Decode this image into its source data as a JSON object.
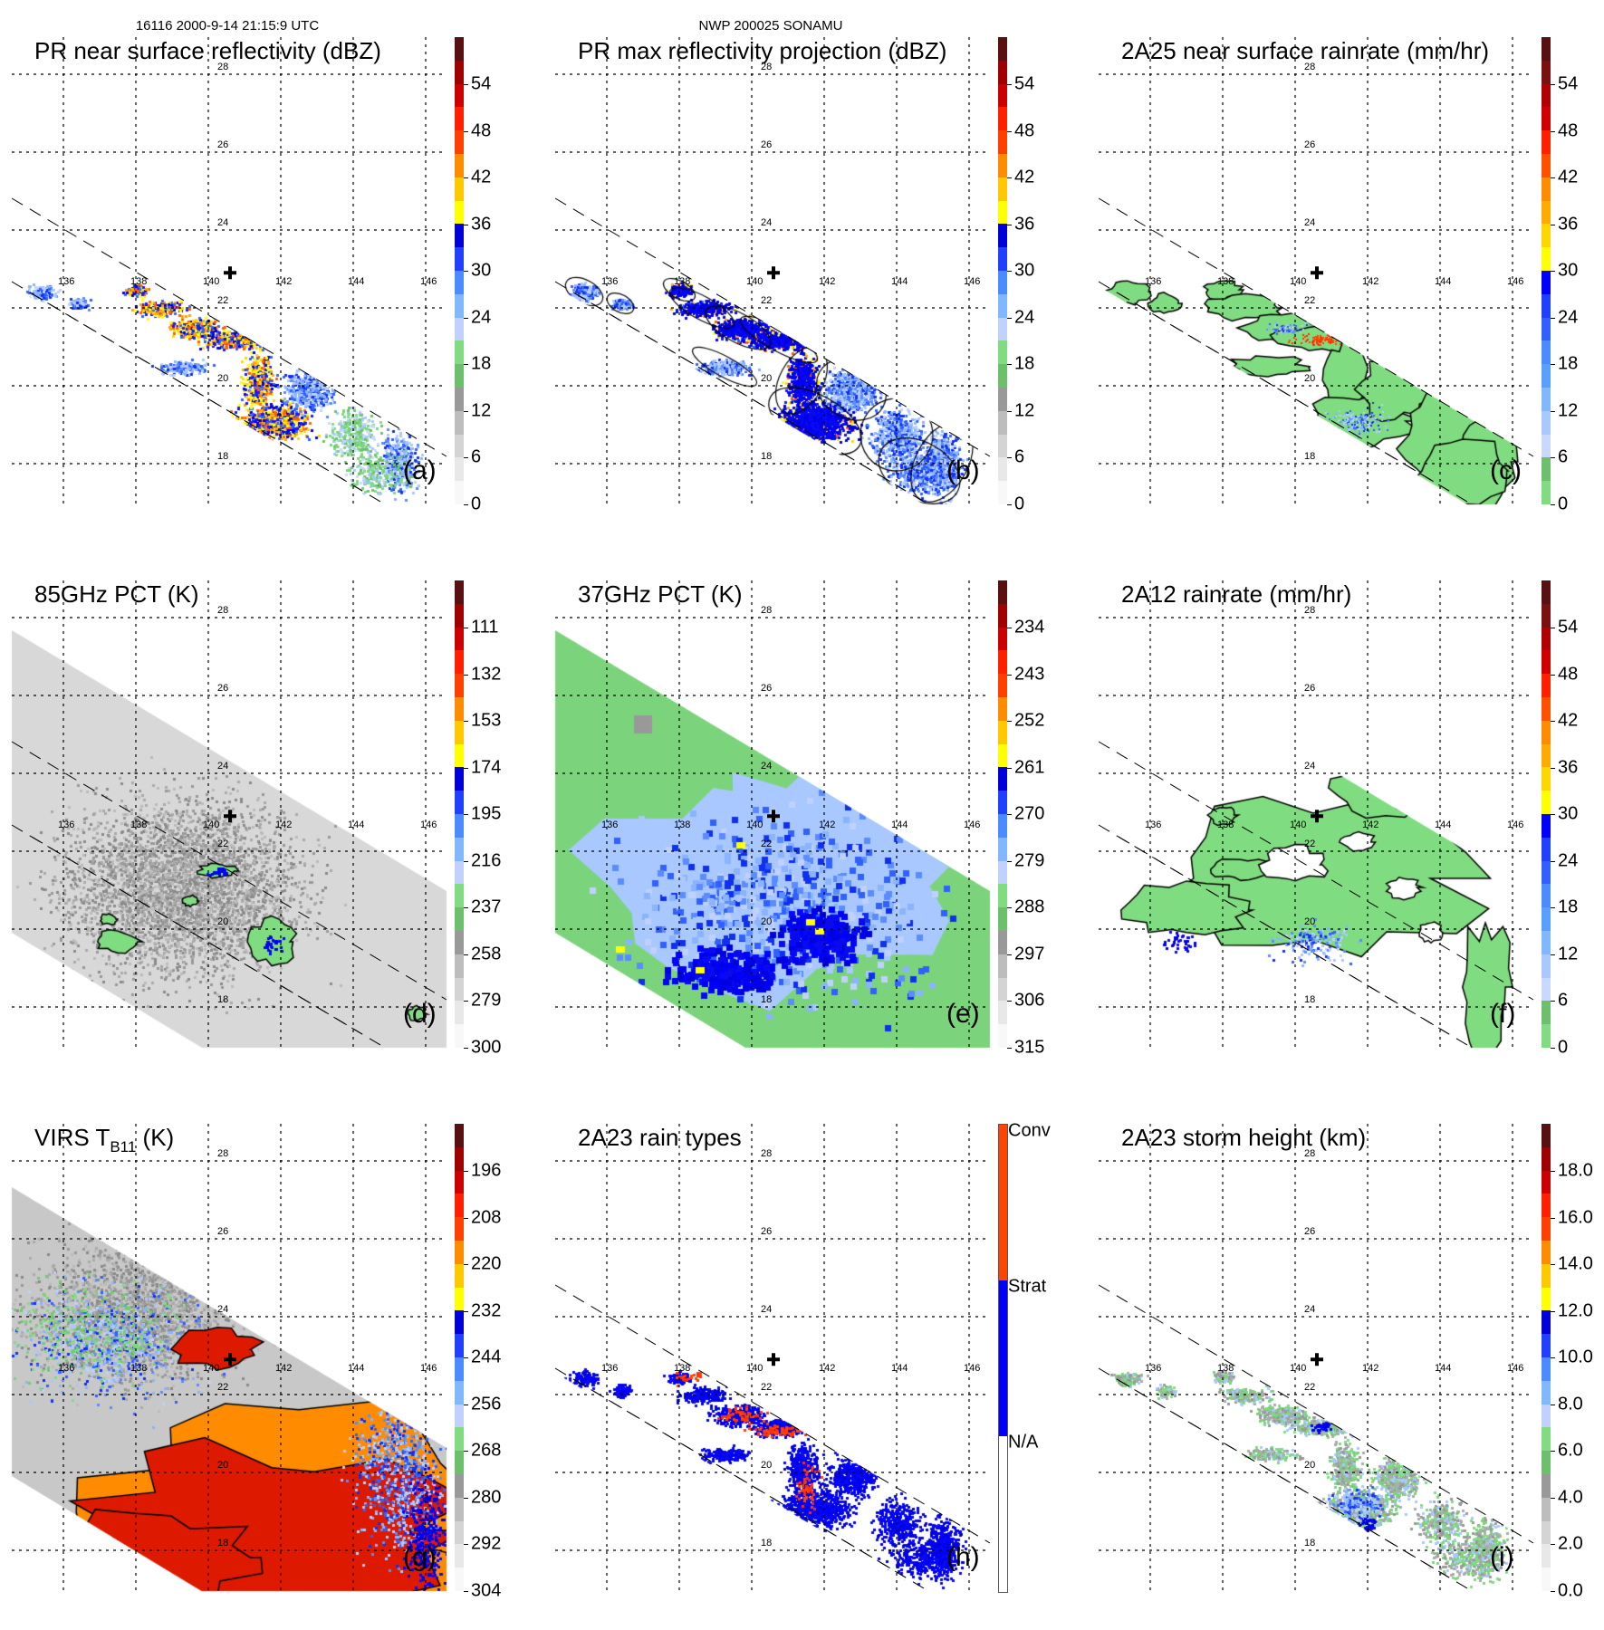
{
  "header": {
    "left": "16116 2000-9-14 21:15:9 UTC",
    "center": "NWP 200025 SONAMU"
  },
  "axes": {
    "lon_labels": [
      "136",
      "138",
      "140",
      "142",
      "144",
      "146"
    ],
    "lat_labels": [
      "28",
      "26",
      "24",
      "22",
      "20",
      "18"
    ]
  },
  "palettes": {
    "reflectivity": [
      "#f8f8f8",
      "#e8e8e8",
      "#d4d4d4",
      "#bdbdbd",
      "#999999",
      "#6cc06c",
      "#80dc80",
      "#c0d0ff",
      "#80b8ff",
      "#4a8cff",
      "#2040ff",
      "#0000d8",
      "#ffff00",
      "#ffc800",
      "#ff8c00",
      "#ff4000",
      "#ff2000",
      "#cc0000",
      "#a00000",
      "#5a1010"
    ],
    "rainrate": [
      "#80dc80",
      "#6cc06c",
      "#c8d8ff",
      "#a8c8ff",
      "#80b8ff",
      "#58a0ff",
      "#4a8cff",
      "#3060ff",
      "#2040ff",
      "#0000ff",
      "#ffff00",
      "#ffd700",
      "#ffaa00",
      "#ff8c00",
      "#ff5000",
      "#ff2000",
      "#d00000",
      "#b00000",
      "#7a1010",
      "#5a1010"
    ],
    "raintype": {
      "conv": "#ff4500",
      "strat": "#0000ff",
      "na": "#ffffff"
    }
  },
  "panels": [
    {
      "id": "a",
      "title": "PR near surface reflectivity (dBZ)",
      "label": "(a)",
      "palette": "reflectivity",
      "colorbar_labels": [
        "54",
        "48",
        "42",
        "36",
        "30",
        "24",
        "18",
        "12",
        "6",
        "0"
      ]
    },
    {
      "id": "b",
      "title": "PR max reflectivity projection (dBZ)",
      "label": "(b)",
      "palette": "reflectivity",
      "colorbar_labels": [
        "54",
        "48",
        "42",
        "36",
        "30",
        "24",
        "18",
        "12",
        "6",
        "0"
      ]
    },
    {
      "id": "c",
      "title": "2A25 near surface rainrate (mm/hr)",
      "label": "(c)",
      "palette": "rainrate",
      "colorbar_labels": [
        "54",
        "48",
        "42",
        "36",
        "30",
        "24",
        "18",
        "12",
        "6",
        "0"
      ]
    },
    {
      "id": "d",
      "title": "85GHz PCT (K)",
      "label": "(d)",
      "palette": "reflectivity",
      "colorbar_labels": [
        "111",
        "132",
        "153",
        "174",
        "195",
        "216",
        "237",
        "258",
        "279",
        "300"
      ]
    },
    {
      "id": "e",
      "title": "37GHz PCT (K)",
      "label": "(e)",
      "palette": "reflectivity",
      "colorbar_labels": [
        "234",
        "243",
        "252",
        "261",
        "270",
        "279",
        "288",
        "297",
        "306",
        "315"
      ]
    },
    {
      "id": "f",
      "title": "2A12 rainrate (mm/hr)",
      "label": "(f)",
      "palette": "rainrate",
      "colorbar_labels": [
        "54",
        "48",
        "42",
        "36",
        "30",
        "24",
        "18",
        "12",
        "6",
        "0"
      ]
    },
    {
      "id": "g",
      "title": "VIRS T",
      "title_sub": "B11",
      "title_end": " (K)",
      "label": "(g)",
      "palette": "reflectivity",
      "colorbar_labels": [
        "196",
        "208",
        "220",
        "232",
        "244",
        "256",
        "268",
        "280",
        "292",
        "304"
      ]
    },
    {
      "id": "h",
      "title": "2A23 rain types",
      "label": "(h)",
      "palette": "raintype",
      "colorbar_labels": [
        "Conv",
        "Strat",
        "N/A"
      ]
    },
    {
      "id": "i",
      "title": "2A23 storm height (km)",
      "label": "(i)",
      "palette": "reflectivity",
      "colorbar_labels": [
        "18.0",
        "16.0",
        "14.0",
        "12.0",
        "10.0",
        "8.0",
        "6.0",
        "4.0",
        "2.0",
        "0.0"
      ]
    }
  ]
}
